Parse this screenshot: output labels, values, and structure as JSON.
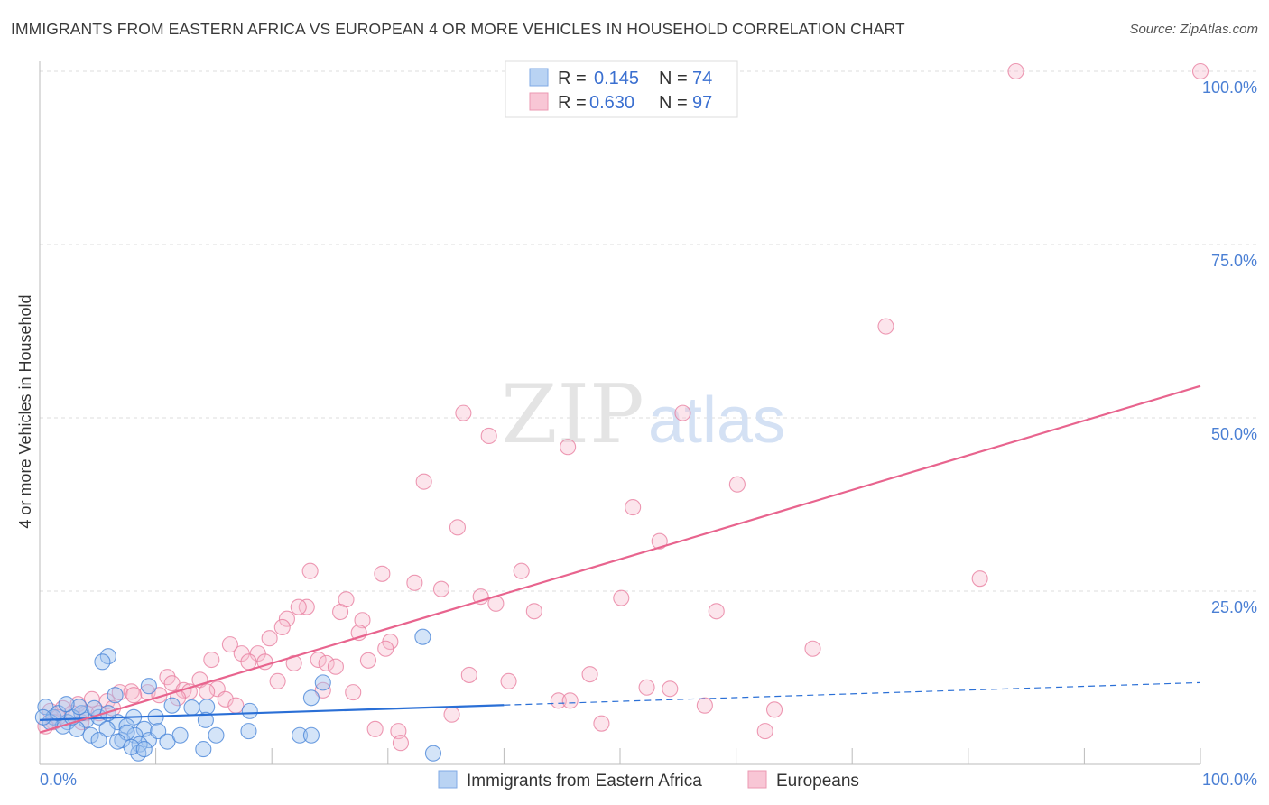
{
  "title": "IMMIGRANTS FROM EASTERN AFRICA VS EUROPEAN 4 OR MORE VEHICLES IN HOUSEHOLD CORRELATION CHART",
  "source": "Source: ZipAtlas.com",
  "watermark": "ZIPatlas",
  "chart_data": {
    "type": "scatter",
    "title": "IMMIGRANTS FROM EASTERN AFRICA VS EUROPEAN 4 OR MORE VEHICLES IN HOUSEHOLD CORRELATION CHART",
    "xlabel": "",
    "ylabel": "4 or more Vehicles in Household",
    "xlim": [
      0,
      100
    ],
    "ylim": [
      0,
      100
    ],
    "x_tick_labels": [
      "0.0%",
      "100.0%"
    ],
    "y_ticks": [
      25,
      50,
      75,
      100
    ],
    "y_tick_labels": [
      "25.0%",
      "50.0%",
      "75.0%",
      "100.0%"
    ],
    "grid": true,
    "legend_position": "top-center",
    "colors": {
      "blue": "#4a86d8",
      "pink": "#e8648e",
      "blue_fill": "#b9d3f3",
      "pink_fill": "#f8c6d5"
    },
    "stats": [
      {
        "r_label": "R =",
        "r": "0.145",
        "n_label": "N =",
        "n": "74"
      },
      {
        "r_label": "R =",
        "r": "0.630",
        "n_label": "N =",
        "n": "97"
      }
    ],
    "series": [
      {
        "name": "Immigrants from Eastern Africa",
        "color": "#4a86d8",
        "trend": {
          "x0": 0,
          "y0": 6.4,
          "x_solid_end": 40,
          "x1": 100,
          "y1": 11.8
        },
        "points": [
          [
            5.9,
            15.6
          ],
          [
            5.4,
            14.8
          ],
          [
            9.4,
            11.3
          ],
          [
            6.5,
            10.0
          ],
          [
            24.4,
            11.8
          ],
          [
            33.0,
            18.4
          ],
          [
            23.4,
            9.6
          ],
          [
            11.4,
            8.5
          ],
          [
            13.1,
            8.2
          ],
          [
            14.4,
            8.3
          ],
          [
            18.1,
            7.7
          ],
          [
            8.1,
            6.8
          ],
          [
            14.3,
            6.4
          ],
          [
            10.0,
            6.8
          ],
          [
            0.5,
            8.3
          ],
          [
            1.2,
            6.8
          ],
          [
            2.4,
            6.1
          ],
          [
            4.0,
            6.4
          ],
          [
            5.1,
            6.8
          ],
          [
            6.7,
            6.1
          ],
          [
            7.5,
            5.5
          ],
          [
            9.0,
            5.1
          ],
          [
            8.2,
            4.2
          ],
          [
            9.4,
            3.5
          ],
          [
            7.1,
            3.5
          ],
          [
            8.6,
            2.9
          ],
          [
            8.5,
            1.6
          ],
          [
            14.1,
            2.2
          ],
          [
            15.2,
            4.2
          ],
          [
            18.0,
            4.8
          ],
          [
            22.4,
            4.2
          ],
          [
            23.4,
            4.2
          ],
          [
            33.9,
            1.6
          ],
          [
            4.4,
            4.2
          ],
          [
            3.2,
            5.1
          ],
          [
            2.0,
            5.5
          ],
          [
            0.9,
            6.1
          ],
          [
            1.6,
            7.4
          ],
          [
            3.6,
            7.4
          ],
          [
            4.7,
            8.1
          ],
          [
            5.8,
            5.1
          ],
          [
            7.5,
            4.6
          ],
          [
            10.2,
            4.8
          ],
          [
            11.0,
            3.3
          ],
          [
            0.3,
            6.8
          ],
          [
            2.8,
            6.8
          ],
          [
            5.1,
            3.5
          ],
          [
            6.7,
            3.3
          ],
          [
            7.9,
            2.5
          ],
          [
            9.0,
            2.2
          ],
          [
            5.9,
            7.4
          ],
          [
            3.4,
            8.3
          ],
          [
            2.3,
            8.7
          ],
          [
            12.1,
            4.2
          ]
        ]
      },
      {
        "name": "Europeans",
        "color": "#e8648e",
        "trend": {
          "x0": 0,
          "y0": 4.6,
          "x_solid_end": 100,
          "x1": 100,
          "y1": 54.6
        },
        "points": [
          [
            84.1,
            100
          ],
          [
            100,
            100
          ],
          [
            72.9,
            63.2
          ],
          [
            36.5,
            50.7
          ],
          [
            55.4,
            50.7
          ],
          [
            38.7,
            47.4
          ],
          [
            45.5,
            45.8
          ],
          [
            33.1,
            40.8
          ],
          [
            60.1,
            40.4
          ],
          [
            51.1,
            37.1
          ],
          [
            36.0,
            34.2
          ],
          [
            53.4,
            32.2
          ],
          [
            23.3,
            27.9
          ],
          [
            41.5,
            27.9
          ],
          [
            29.5,
            27.5
          ],
          [
            81.0,
            26.8
          ],
          [
            32.3,
            26.2
          ],
          [
            34.6,
            25.3
          ],
          [
            38.0,
            24.2
          ],
          [
            50.1,
            24.0
          ],
          [
            26.4,
            23.8
          ],
          [
            23.0,
            22.7
          ],
          [
            22.3,
            22.7
          ],
          [
            39.3,
            23.2
          ],
          [
            42.6,
            22.1
          ],
          [
            25.9,
            22.0
          ],
          [
            58.3,
            22.1
          ],
          [
            21.3,
            21.0
          ],
          [
            27.8,
            20.8
          ],
          [
            20.9,
            19.8
          ],
          [
            27.5,
            19.0
          ],
          [
            19.8,
            18.2
          ],
          [
            30.2,
            17.7
          ],
          [
            16.4,
            17.3
          ],
          [
            29.8,
            16.7
          ],
          [
            66.6,
            16.7
          ],
          [
            17.4,
            16.0
          ],
          [
            18.8,
            16.0
          ],
          [
            14.8,
            15.1
          ],
          [
            19.4,
            14.8
          ],
          [
            18.0,
            14.8
          ],
          [
            24.0,
            15.1
          ],
          [
            21.9,
            14.6
          ],
          [
            24.7,
            14.6
          ],
          [
            25.5,
            14.1
          ],
          [
            28.3,
            15.0
          ],
          [
            37.0,
            12.9
          ],
          [
            47.4,
            13.0
          ],
          [
            40.4,
            12.0
          ],
          [
            11.0,
            12.6
          ],
          [
            13.8,
            12.2
          ],
          [
            20.5,
            12.0
          ],
          [
            11.4,
            11.7
          ],
          [
            15.3,
            10.9
          ],
          [
            52.3,
            11.1
          ],
          [
            54.3,
            10.9
          ],
          [
            24.4,
            10.7
          ],
          [
            12.4,
            10.7
          ],
          [
            12.9,
            10.5
          ],
          [
            14.4,
            10.5
          ],
          [
            9.3,
            10.4
          ],
          [
            6.9,
            10.4
          ],
          [
            7.9,
            10.5
          ],
          [
            27.0,
            10.4
          ],
          [
            10.3,
            10.0
          ],
          [
            8.1,
            10.0
          ],
          [
            44.7,
            9.2
          ],
          [
            45.7,
            9.2
          ],
          [
            16.0,
            9.4
          ],
          [
            11.9,
            9.6
          ],
          [
            16.9,
            8.5
          ],
          [
            57.3,
            8.5
          ],
          [
            63.3,
            7.9
          ],
          [
            4.5,
            9.4
          ],
          [
            5.8,
            9.1
          ],
          [
            3.3,
            8.7
          ],
          [
            2.0,
            8.1
          ],
          [
            35.5,
            7.2
          ],
          [
            48.4,
            5.9
          ],
          [
            28.9,
            5.1
          ],
          [
            30.9,
            4.8
          ],
          [
            62.5,
            4.8
          ],
          [
            31.1,
            3.1
          ],
          [
            0.9,
            7.7
          ],
          [
            1.6,
            6.8
          ],
          [
            2.8,
            7.4
          ],
          [
            4.0,
            7.4
          ],
          [
            1.2,
            6.1
          ],
          [
            0.5,
            5.5
          ],
          [
            5.1,
            7.4
          ],
          [
            6.3,
            8.1
          ],
          [
            3.6,
            6.1
          ]
        ]
      }
    ]
  }
}
